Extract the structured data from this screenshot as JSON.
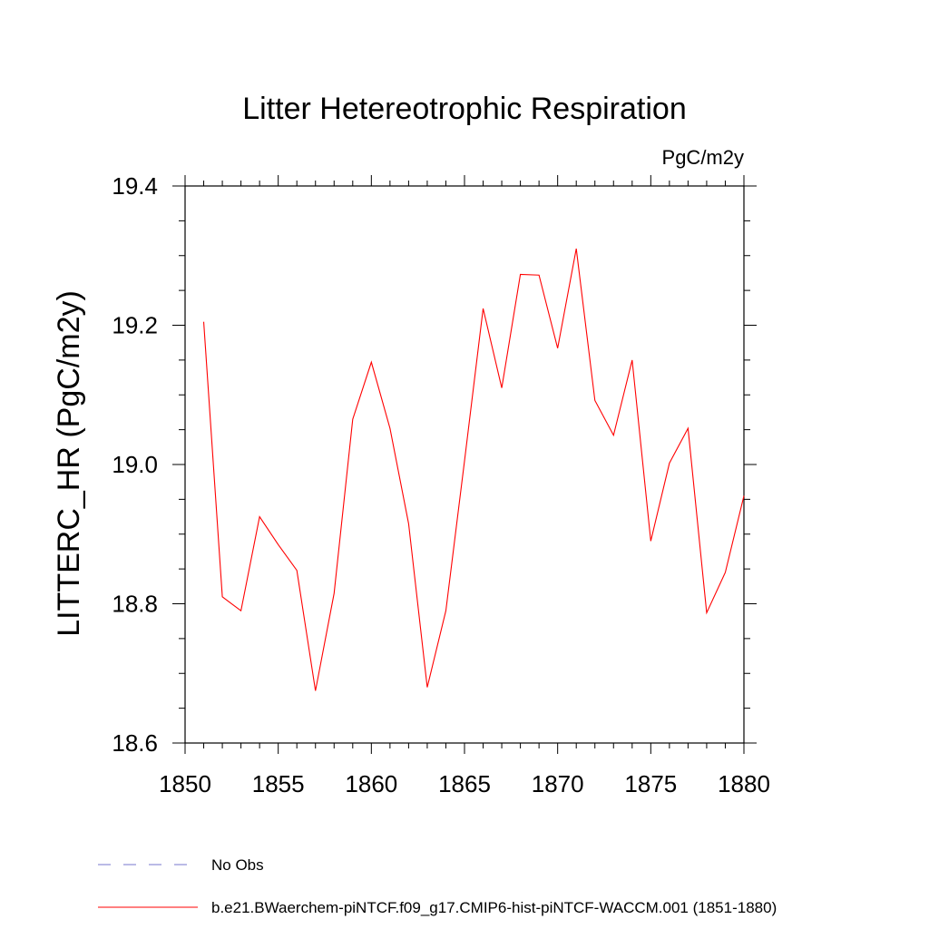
{
  "chart_data": {
    "type": "line",
    "title": "Litter Hetereotrophic Respiration",
    "units_label": "PgC/m2y",
    "ylabel": "LITTERC_HR  (PgC/m2y)",
    "xlabel": "",
    "xlim": [
      1850,
      1880
    ],
    "ylim": [
      18.6,
      19.4
    ],
    "x_ticks": [
      "1850",
      "1855",
      "1860",
      "1865",
      "1870",
      "1875",
      "1880"
    ],
    "y_ticks": [
      "18.6",
      "18.8",
      "19.0",
      "19.2",
      "19.4"
    ],
    "grid": false,
    "legend_placement": "bottom-left",
    "series": [
      {
        "name": "b.e21.BWaerchem-piNTCF.f09_g17.CMIP6-hist-piNTCF-WACCM.001 (1851-1880)",
        "color": "#ff0000",
        "dash": "solid",
        "x": [
          1851,
          1852,
          1853,
          1854,
          1855,
          1856,
          1857,
          1858,
          1859,
          1860,
          1861,
          1862,
          1863,
          1864,
          1865,
          1866,
          1867,
          1868,
          1869,
          1870,
          1871,
          1872,
          1873,
          1874,
          1875,
          1876,
          1877,
          1878,
          1879,
          1880
        ],
        "y": [
          19.205,
          18.81,
          18.79,
          18.925,
          18.885,
          18.848,
          18.675,
          18.815,
          19.065,
          19.147,
          19.052,
          18.915,
          18.68,
          18.79,
          19.005,
          19.224,
          19.11,
          19.273,
          19.272,
          19.167,
          19.31,
          19.092,
          19.042,
          19.15,
          18.89,
          19.002,
          19.052,
          18.787,
          18.845,
          18.955
        ]
      },
      {
        "name": "No Obs",
        "color": "#7777cc",
        "dash": "dashed",
        "x": [],
        "y": []
      }
    ]
  }
}
